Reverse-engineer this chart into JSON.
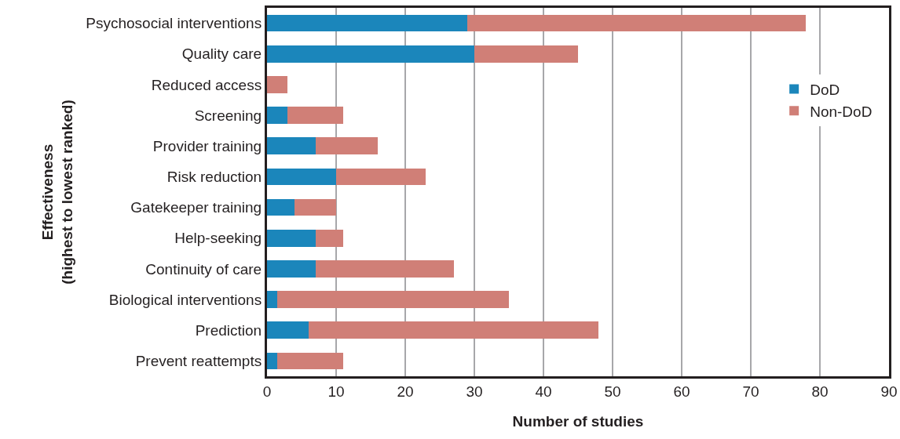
{
  "chart_data": {
    "type": "bar",
    "orientation": "horizontal",
    "stacked": true,
    "xlabel": "Number of studies",
    "ylabel": "Effectiveness\n(highest to lowest ranked)",
    "categories": [
      "Psychosocial interventions",
      "Quality care",
      "Reduced access",
      "Screening",
      "Provider training",
      "Risk reduction",
      "Gatekeeper training",
      "Help-seeking",
      "Continuity of care",
      "Biological interventions",
      "Prediction",
      "Prevent reattempts"
    ],
    "series": [
      {
        "name": "DoD",
        "color": "#1b86bb",
        "values": [
          29,
          30,
          0,
          3,
          7,
          10,
          4,
          7,
          7,
          1.5,
          6,
          1.5
        ]
      },
      {
        "name": "Non-DoD",
        "color": "#d07f77",
        "values": [
          49,
          15,
          3,
          8,
          9,
          13,
          6,
          4,
          20,
          33.5,
          42,
          9.5
        ]
      }
    ],
    "xlim": [
      0,
      90
    ],
    "xticks": [
      0,
      10,
      20,
      30,
      40,
      50,
      60,
      70,
      80,
      90
    ],
    "grid": "x",
    "legend": "top right"
  }
}
